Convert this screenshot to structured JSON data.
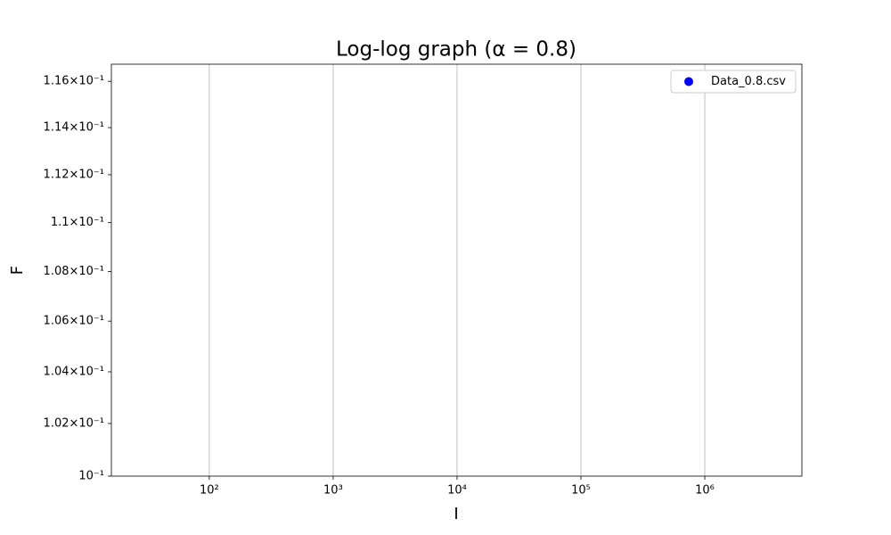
{
  "chart_data": {
    "type": "scatter",
    "title": "Log-log graph (α = 0.8)",
    "x_label": "I",
    "y_label": "F",
    "xscale": "log",
    "yscale": "log",
    "xlim": [
      16.2,
      6080000
    ],
    "ylim": [
      0.1,
      0.11675
    ],
    "xticks": [
      {
        "value": 100,
        "label": "10²"
      },
      {
        "value": 1000,
        "label": "10³"
      },
      {
        "value": 10000,
        "label": "10⁴"
      },
      {
        "value": 100000,
        "label": "10⁵"
      },
      {
        "value": 1000000,
        "label": "10⁶"
      }
    ],
    "yticks": [
      {
        "value": 0.1,
        "label": "10⁻¹"
      },
      {
        "value": 0.102,
        "label": "1.02×10⁻¹"
      },
      {
        "value": 0.104,
        "label": "1.04×10⁻¹"
      },
      {
        "value": 0.106,
        "label": "1.06×10⁻¹"
      },
      {
        "value": 0.108,
        "label": "1.08×10⁻¹"
      },
      {
        "value": 0.11,
        "label": "1.1×10⁻¹"
      },
      {
        "value": 0.112,
        "label": "1.12×10⁻¹"
      },
      {
        "value": 0.114,
        "label": "1.14×10⁻¹"
      },
      {
        "value": 0.116,
        "label": "1.16×10⁻¹"
      }
    ],
    "grid": "x",
    "legend": "upper right",
    "series": [
      {
        "name": "Data_0.8.csv",
        "color": "#0000ff",
        "x": [],
        "values": []
      }
    ]
  }
}
